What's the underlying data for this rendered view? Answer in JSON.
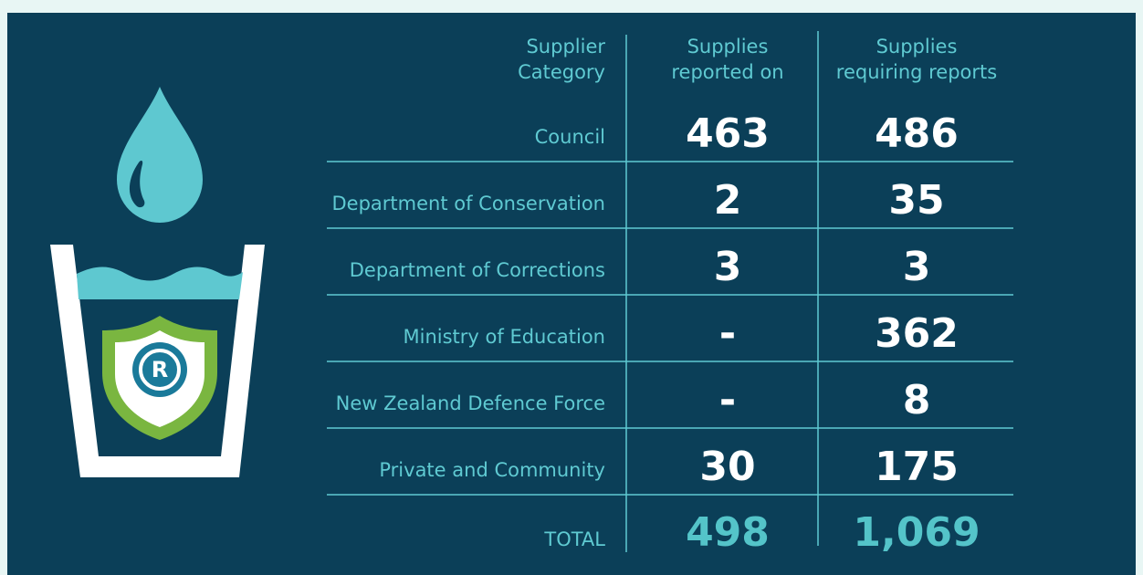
{
  "table": {
    "columns": [
      [
        "Supplier",
        "Category"
      ],
      [
        "Supplies",
        "reported on"
      ],
      [
        "Supplies",
        "requiring reports"
      ]
    ],
    "rows": [
      [
        "Council",
        "463",
        "486"
      ],
      [
        "Department of Conservation",
        "2",
        "35"
      ],
      [
        "Department of Corrections",
        "3",
        "3"
      ],
      [
        "Ministry of Education",
        "-",
        "362"
      ],
      [
        "New Zealand Defence Force",
        "-",
        "8"
      ],
      [
        "Private and Community",
        "30",
        "175"
      ]
    ],
    "total": [
      "TOTAL",
      "498",
      "1,069"
    ]
  }
}
